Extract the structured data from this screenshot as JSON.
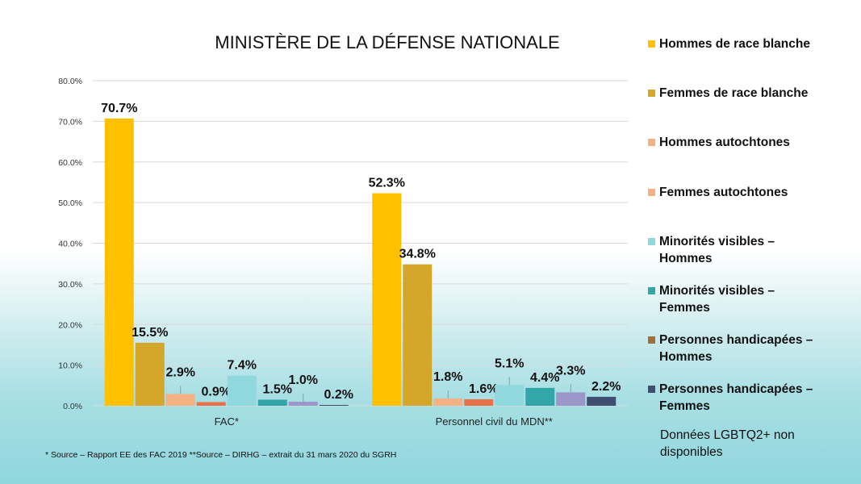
{
  "chart_data": {
    "type": "bar",
    "title": "MINISTÈRE DE LA DÉFENSE NATIONALE",
    "xlabel": "",
    "ylabel": "",
    "ylim": [
      0,
      80
    ],
    "yticks": [
      "0.0%",
      "10.0%",
      "20.0%",
      "30.0%",
      "40.0%",
      "50.0%",
      "60.0%",
      "70.0%",
      "80.0%"
    ],
    "grid": true,
    "legend_position": "right",
    "categories": [
      "FAC*",
      "Personnel civil du MDN**"
    ],
    "series": [
      {
        "name": "Hommes de race blanche",
        "color": "#FFC000",
        "values": [
          70.7,
          52.3
        ],
        "labels": [
          "70.7%",
          "52.3%"
        ]
      },
      {
        "name": "Femmes de race blanche",
        "color": "#D4A62A",
        "values": [
          15.5,
          34.8
        ],
        "labels": [
          "15.5%",
          "34.8%"
        ]
      },
      {
        "name": "Hommes autochtones",
        "color": "#F4B183",
        "values": [
          2.9,
          1.8
        ],
        "labels": [
          "2.9%",
          "1.8%"
        ]
      },
      {
        "name": "Femmes autochtones",
        "color": "#E8704A",
        "values": [
          0.9,
          1.6
        ],
        "labels": [
          "0.9%",
          "1.6%"
        ]
      },
      {
        "name": "Minorités visibles – Hommes",
        "color": "#8FD8DE",
        "values": [
          7.4,
          5.1
        ],
        "labels": [
          "7.4%",
          "5.1%"
        ]
      },
      {
        "name": "Minorités visibles – Femmes",
        "color": "#32A6A8",
        "values": [
          1.5,
          4.4
        ],
        "labels": [
          "1.5%",
          "4.4%"
        ]
      },
      {
        "name": "Personnes handicapées – Hommes",
        "color": "#9B97C8",
        "legend_color": "#A0703A",
        "values": [
          1.0,
          3.3
        ],
        "labels": [
          "1.0%",
          "3.3%"
        ]
      },
      {
        "name": "Personnes handicapées – Femmes",
        "color": "#3F4E6E",
        "values": [
          0.2,
          2.2
        ],
        "labels": [
          "0.2%",
          "2.2%"
        ]
      }
    ]
  },
  "legend": {
    "items": [
      {
        "label": "Hommes de race blanche",
        "color": "#FFC000"
      },
      {
        "label": "Femmes de race blanche",
        "color": "#D4A62A"
      },
      {
        "label": "Hommes autochtones",
        "color": "#F4B183"
      },
      {
        "label": "Femmes autochtones",
        "color": "#F4B183"
      },
      {
        "label": "Minorités visibles – Hommes",
        "color": "#8FD8DE"
      },
      {
        "label": "Minorités visibles – Femmes",
        "color": "#32A6A8"
      },
      {
        "label": "Personnes handicapées – Hommes",
        "color": "#A0703A"
      },
      {
        "label": "Personnes handicapées – Femmes",
        "color": "#3F4E6E"
      }
    ],
    "note": "Données LGBTQ2+ non disponibles"
  },
  "footnote": "* Source – Rapport EE des FAC 2019   **Source – DIRHG – extrait du 31 mars 2020 du SGRH"
}
